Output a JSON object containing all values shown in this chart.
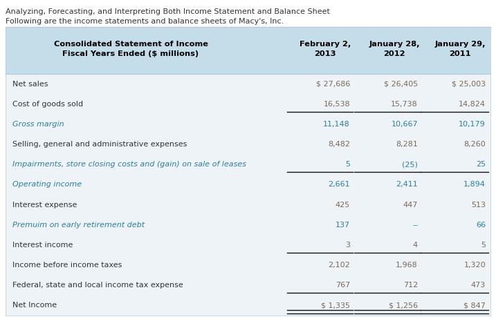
{
  "title_line1": "Analyzing, Forecasting, and Interpreting Both Income Statement and Balance Sheet",
  "title_line2": "Following are the income statements and balance sheets of Macy's, Inc.",
  "header_label": "Consolidated Statement of Income\nFiscal Years Ended ($ millions)",
  "col_headers": [
    "February 2,\n2013",
    "January 28,\n2012",
    "January 29,\n2011"
  ],
  "header_bg": "#c5dce9",
  "row_bg": "#edf3f7",
  "outer_bg": "#ffffff",
  "label_color_normal": "#333333",
  "label_color_italic": "#2b7fa3",
  "val_color_normal": "#7a6a5a",
  "val_color_italic": "#2b7fa3",
  "rows": [
    {
      "label": "Net sales",
      "vals": [
        "$ 27,686",
        "$ 26,405",
        "$ 25,003"
      ],
      "italic": false,
      "underline_after": false,
      "double_underline": false
    },
    {
      "label": "Cost of goods sold",
      "vals": [
        "16,538",
        "15,738",
        "14,824"
      ],
      "italic": false,
      "underline_after": true,
      "double_underline": false
    },
    {
      "label": "Gross margin",
      "vals": [
        "11,148",
        "10,667",
        "10,179"
      ],
      "italic": true,
      "underline_after": false,
      "double_underline": false
    },
    {
      "label": "Selling, general and administrative expenses",
      "vals": [
        "8,482",
        "8,281",
        "8,260"
      ],
      "italic": false,
      "underline_after": false,
      "double_underline": false
    },
    {
      "label": "Impairments, store closing costs and (gain) on sale of leases",
      "vals": [
        "5",
        "(25)",
        "25"
      ],
      "italic": true,
      "underline_after": true,
      "double_underline": false
    },
    {
      "label": "Operating income",
      "vals": [
        "2,661",
        "2,411",
        "1,894"
      ],
      "italic": true,
      "underline_after": false,
      "double_underline": false
    },
    {
      "label": "Interest expense",
      "vals": [
        "425",
        "447",
        "513"
      ],
      "italic": false,
      "underline_after": false,
      "double_underline": false
    },
    {
      "label": "Premuim on early retirement debt",
      "vals": [
        "137",
        "--",
        "66"
      ],
      "italic": true,
      "underline_after": false,
      "double_underline": false
    },
    {
      "label": "Interest income",
      "vals": [
        "3",
        "4",
        "5"
      ],
      "italic": false,
      "underline_after": true,
      "double_underline": false
    },
    {
      "label": "Income before income taxes",
      "vals": [
        "2,102",
        "1,968",
        "1,320"
      ],
      "italic": false,
      "underline_after": false,
      "double_underline": false
    },
    {
      "label": "Federal, state and local income tax expense",
      "vals": [
        "767",
        "712",
        "473"
      ],
      "italic": false,
      "underline_after": true,
      "double_underline": false
    },
    {
      "label": "Net Income",
      "vals": [
        "$ 1,335",
        "$ 1,256",
        "$ 847"
      ],
      "italic": false,
      "underline_after": false,
      "double_underline": true
    }
  ],
  "title_fontsize": 8.0,
  "header_fontsize": 8.2,
  "body_fontsize": 8.0
}
